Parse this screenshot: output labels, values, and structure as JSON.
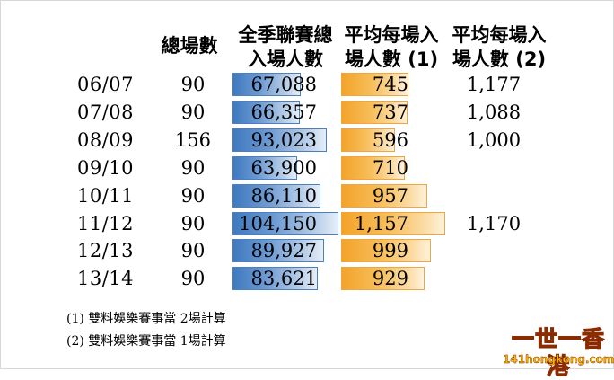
{
  "headers": {
    "games": "總場數",
    "total": "全季聯賽總\n入場人數",
    "avg1": "平均每場入\n場人數 (1)",
    "avg2": "平均每場入\n場人數  (2)"
  },
  "chart_data": {
    "type": "table",
    "columns": [
      "",
      "總場數",
      "全季聯賽總入場人數",
      "平均每場入場人數 (1)",
      "平均每場入場人數 (2)"
    ],
    "rows": [
      {
        "season": "06/07",
        "games": "90",
        "total": "67,088",
        "avg1": "745",
        "avg2": "1,177",
        "total_value": 67088,
        "avg1_value": 745
      },
      {
        "season": "07/08",
        "games": "90",
        "total": "66,357",
        "avg1": "737",
        "avg2": "1,088",
        "total_value": 66357,
        "avg1_value": 737
      },
      {
        "season": "08/09",
        "games": "156",
        "total": "93,023",
        "avg1": "596",
        "avg2": "1,000",
        "total_value": 93023,
        "avg1_value": 596
      },
      {
        "season": "09/10",
        "games": "90",
        "total": "63,900",
        "avg1": "710",
        "avg2": "",
        "total_value": 63900,
        "avg1_value": 710
      },
      {
        "season": "10/11",
        "games": "90",
        "total": "86,110",
        "avg1": "957",
        "avg2": "",
        "total_value": 86110,
        "avg1_value": 957
      },
      {
        "season": "11/12",
        "games": "90",
        "total": "104,150",
        "avg1": "1,157",
        "avg2": "1,170",
        "total_value": 104150,
        "avg1_value": 1157
      },
      {
        "season": "12/13",
        "games": "90",
        "total": "89,927",
        "avg1": "999",
        "avg2": "",
        "total_value": 89927,
        "avg1_value": 999
      },
      {
        "season": "13/14",
        "games": "90",
        "total": "83,621",
        "avg1": "929",
        "avg2": "",
        "total_value": 83621,
        "avg1_value": 929
      }
    ],
    "total_max": 104150,
    "avg1_max": 1157,
    "bar_colors": {
      "total": "#4a7fc0",
      "avg1": "#f3a32a"
    }
  },
  "notes": [
    "(1)  雙料娛樂賽事當 2場計算",
    "(2)  雙料娛樂賽事當 1場計算"
  ],
  "watermark": {
    "main": "一世一香港",
    "sub": "141hongkong.com"
  }
}
